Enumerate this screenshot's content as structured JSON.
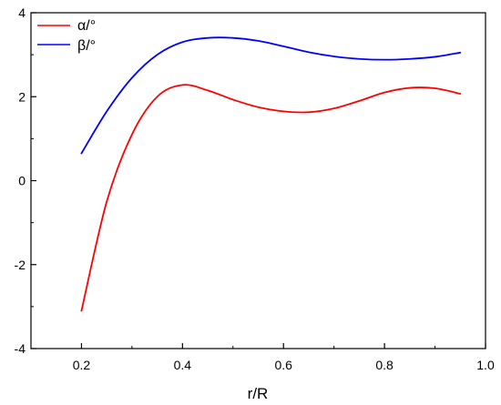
{
  "chart_data": {
    "type": "line",
    "xlabel": "r/R",
    "ylabel": "",
    "xlim": [
      0.1,
      1.0
    ],
    "ylim": [
      -4,
      4
    ],
    "xticks": [
      0.2,
      0.4,
      0.6,
      0.8,
      1.0
    ],
    "xtick_labels": [
      "0.2",
      "0.4",
      "0.6",
      "0.8",
      "1.0"
    ],
    "yticks": [
      -4,
      -2,
      0,
      2,
      4
    ],
    "ytick_labels": [
      "-4",
      "-2",
      "0",
      "2",
      "4"
    ],
    "grid": false,
    "legend_position": "top-left",
    "series": [
      {
        "name": "α/°",
        "color": "#ff0000",
        "x": [
          0.2,
          0.25,
          0.3,
          0.35,
          0.4,
          0.45,
          0.5,
          0.55,
          0.6,
          0.65,
          0.7,
          0.75,
          0.8,
          0.85,
          0.9,
          0.95
        ],
        "y": [
          -3.1,
          -0.5,
          1.1,
          2.0,
          2.28,
          2.15,
          1.93,
          1.75,
          1.65,
          1.63,
          1.72,
          1.9,
          2.1,
          2.21,
          2.2,
          2.07
        ]
      },
      {
        "name": "β/°",
        "color": "#0000ff",
        "x": [
          0.2,
          0.25,
          0.3,
          0.35,
          0.4,
          0.45,
          0.5,
          0.55,
          0.6,
          0.65,
          0.7,
          0.75,
          0.8,
          0.85,
          0.9,
          0.95
        ],
        "y": [
          0.65,
          1.65,
          2.45,
          3.0,
          3.3,
          3.4,
          3.4,
          3.33,
          3.2,
          3.06,
          2.96,
          2.9,
          2.88,
          2.9,
          2.95,
          3.05
        ]
      }
    ]
  }
}
